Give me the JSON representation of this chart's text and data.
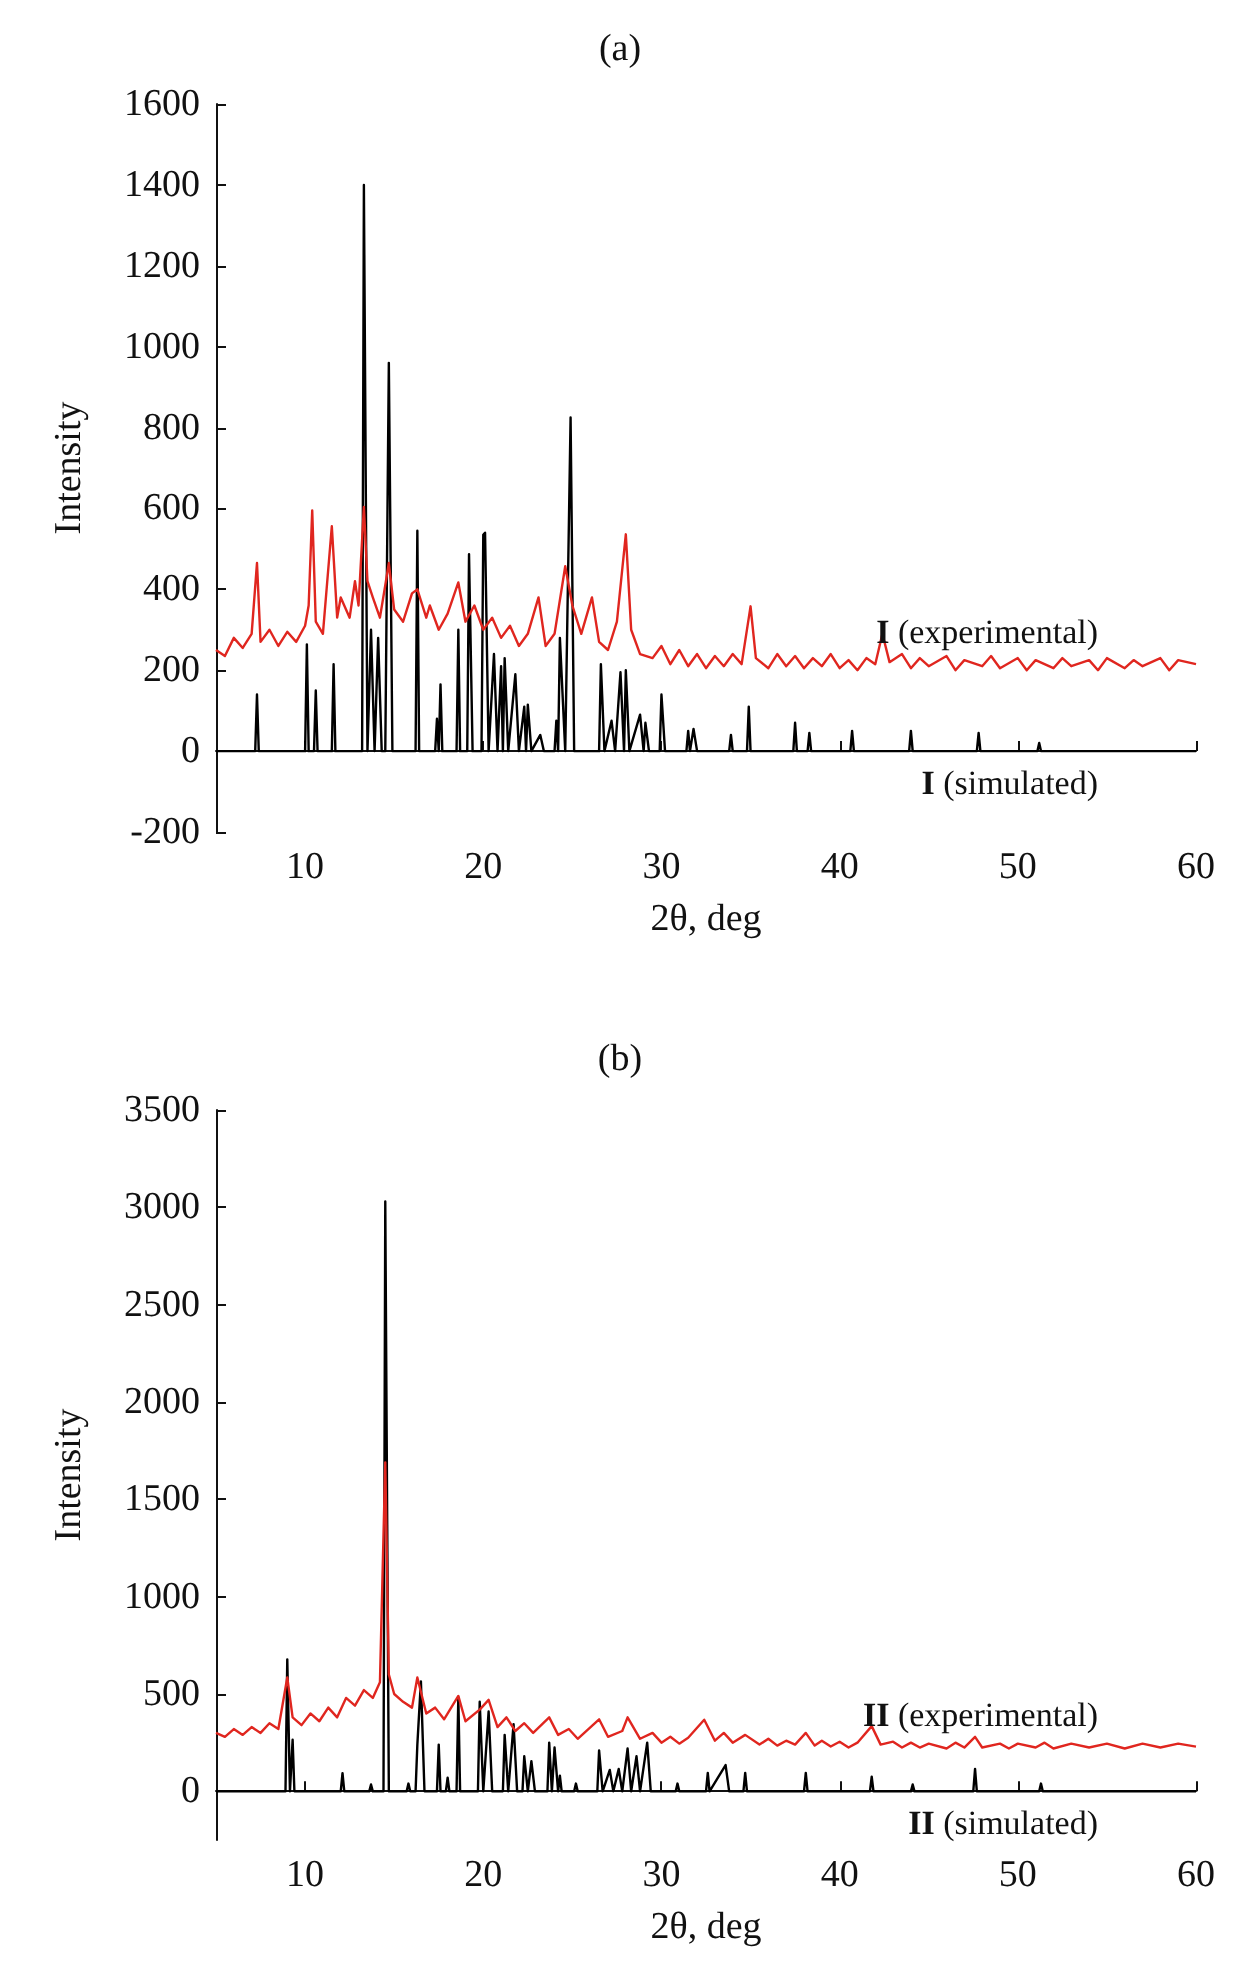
{
  "chart_data": [
    {
      "type": "line",
      "title": "(a)",
      "xlabel": "2θ, deg",
      "ylabel": "Intensity",
      "xlim": [
        5,
        60
      ],
      "xticks": [
        10,
        20,
        30,
        40,
        50,
        60
      ],
      "ylim": [
        -200,
        1600
      ],
      "yticks": [
        -200,
        0,
        200,
        400,
        600,
        800,
        1000,
        1200,
        1400,
        1600
      ],
      "series": [
        {
          "name": "I (simulated)",
          "color": "#000000",
          "x": [
            5,
            7.2,
            7.3,
            7.4,
            10.0,
            10.1,
            10.2,
            10.5,
            10.6,
            10.7,
            11.5,
            11.6,
            11.7,
            13.2,
            13.3,
            13.5,
            13.7,
            13.9,
            14.1,
            14.3,
            14.5,
            14.7,
            14.9,
            16.2,
            16.3,
            16.4,
            17.3,
            17.4,
            17.5,
            17.6,
            17.7,
            18.5,
            18.6,
            18.7,
            19.1,
            19.2,
            19.4,
            19.9,
            20.0,
            20.1,
            20.3,
            20.6,
            20.8,
            21.0,
            21.1,
            21.2,
            21.4,
            21.8,
            22.0,
            22.3,
            22.4,
            22.5,
            22.7,
            23.2,
            23.4,
            24.0,
            24.1,
            24.2,
            24.3,
            24.6,
            24.9,
            25.1,
            26.5,
            26.6,
            26.8,
            27.2,
            27.4,
            27.7,
            27.9,
            28.0,
            28.2,
            28.8,
            29.0,
            29.1,
            29.3,
            29.9,
            30.0,
            30.2,
            31.4,
            31.5,
            31.6,
            31.8,
            32.0,
            33.8,
            33.9,
            34.0,
            34.8,
            34.9,
            35.0,
            37.4,
            37.5,
            37.6,
            38.2,
            38.3,
            38.4,
            40.6,
            40.7,
            40.8,
            43.9,
            44.0,
            44.1,
            47.7,
            47.8,
            47.9,
            51.1,
            51.2,
            51.3,
            60
          ],
          "values": [
            0,
            0,
            140,
            0,
            0,
            264,
            0,
            0,
            150,
            0,
            0,
            215,
            0,
            0,
            1400,
            0,
            300,
            0,
            280,
            0,
            0,
            960,
            0,
            0,
            545,
            0,
            0,
            80,
            0,
            165,
            0,
            0,
            300,
            0,
            0,
            487,
            0,
            0,
            535,
            540,
            0,
            240,
            0,
            210,
            0,
            230,
            0,
            190,
            0,
            110,
            0,
            115,
            0,
            40,
            0,
            0,
            75,
            0,
            280,
            0,
            825,
            0,
            0,
            215,
            0,
            75,
            0,
            195,
            0,
            200,
            0,
            90,
            0,
            70,
            0,
            0,
            140,
            0,
            0,
            50,
            0,
            55,
            0,
            0,
            40,
            0,
            0,
            110,
            0,
            0,
            70,
            0,
            0,
            45,
            0,
            0,
            50,
            0,
            0,
            50,
            0,
            0,
            45,
            0,
            0,
            20,
            0,
            0
          ]
        },
        {
          "name": "I (experimental)",
          "color": "#e0261f",
          "x": [
            5,
            5.5,
            6,
            6.5,
            7,
            7.3,
            7.5,
            8,
            8.5,
            9,
            9.5,
            10,
            10.2,
            10.4,
            10.6,
            11,
            11.5,
            11.8,
            12,
            12.5,
            12.8,
            13,
            13.3,
            13.5,
            13.8,
            14.2,
            14.5,
            14.7,
            15,
            15.5,
            16,
            16.3,
            16.8,
            17,
            17.5,
            18,
            18.6,
            19,
            19.5,
            20,
            20.5,
            21,
            21.5,
            22,
            22.5,
            23.1,
            23.5,
            24,
            24.6,
            25,
            25.5,
            26.1,
            26.5,
            27,
            27.5,
            28,
            28.3,
            28.8,
            29.5,
            30,
            30.5,
            31,
            31.5,
            32,
            32.5,
            33,
            33.5,
            34,
            34.5,
            35,
            35.3,
            36,
            36.5,
            37,
            37.5,
            38,
            38.5,
            39,
            39.5,
            40,
            40.5,
            41,
            41.5,
            42,
            42.4,
            42.8,
            43.5,
            44,
            44.5,
            45,
            46,
            46.5,
            47,
            48,
            48.5,
            49,
            50,
            50.5,
            51,
            52,
            52.5,
            53,
            54,
            54.5,
            55,
            56,
            56.5,
            57,
            58,
            58.5,
            59,
            60
          ],
          "values": [
            250,
            235,
            280,
            255,
            290,
            465,
            270,
            300,
            260,
            295,
            270,
            310,
            360,
            595,
            320,
            290,
            556,
            330,
            380,
            330,
            420,
            360,
            604,
            420,
            380,
            330,
            410,
            465,
            350,
            320,
            390,
            400,
            330,
            360,
            300,
            340,
            417,
            320,
            360,
            300,
            330,
            280,
            310,
            260,
            290,
            380,
            260,
            290,
            457,
            360,
            290,
            380,
            270,
            250,
            320,
            536,
            300,
            240,
            230,
            260,
            215,
            250,
            210,
            240,
            205,
            235,
            210,
            240,
            215,
            358,
            230,
            205,
            240,
            210,
            235,
            205,
            230,
            210,
            240,
            205,
            225,
            200,
            230,
            215,
            290,
            220,
            240,
            205,
            230,
            210,
            235,
            200,
            225,
            210,
            235,
            205,
            230,
            200,
            225,
            205,
            230,
            210,
            225,
            200,
            230,
            205,
            225,
            210,
            230,
            200,
            225,
            215
          ]
        }
      ]
    },
    {
      "type": "line",
      "title": "(b)",
      "xlabel": "2θ, deg",
      "ylabel": "Intensity",
      "xlim": [
        5,
        60
      ],
      "xticks": [
        10,
        20,
        30,
        40,
        50,
        60
      ],
      "ylim": [
        -250,
        3500
      ],
      "yticks": [
        0,
        500,
        1000,
        1500,
        2000,
        2500,
        3000,
        3500
      ],
      "series": [
        {
          "name": "II (simulated)",
          "color": "#000000",
          "x": [
            5,
            8.9,
            9.0,
            9.15,
            9.3,
            9.4,
            12.0,
            12.1,
            12.2,
            13.6,
            13.7,
            13.8,
            14.4,
            14.5,
            14.7,
            15.7,
            15.8,
            15.9,
            16.2,
            16.3,
            16.5,
            16.7,
            17.4,
            17.5,
            17.6,
            17.9,
            18.0,
            18.1,
            18.5,
            18.6,
            18.7,
            19.7,
            19.8,
            20.0,
            20.3,
            20.5,
            21.1,
            21.2,
            21.4,
            21.7,
            21.9,
            22.2,
            22.3,
            22.5,
            22.7,
            22.9,
            23.6,
            23.7,
            23.85,
            24.0,
            24.2,
            24.3,
            24.4,
            25.1,
            25.2,
            25.3,
            26.4,
            26.5,
            26.7,
            27.1,
            27.3,
            27.6,
            27.8,
            28.1,
            28.3,
            28.6,
            28.8,
            29.2,
            29.4,
            30.8,
            30.9,
            31.0,
            32.5,
            32.6,
            32.7,
            33.6,
            33.8,
            34.6,
            34.7,
            34.8,
            38.0,
            38.1,
            38.2,
            41.7,
            41.8,
            41.9,
            44.0,
            44.1,
            44.2,
            47.5,
            47.6,
            47.7,
            51.2,
            51.3,
            51.4,
            60
          ],
          "values": [
            0,
            0,
            678,
            0,
            265,
            0,
            0,
            93,
            0,
            0,
            35,
            0,
            0,
            3030,
            0,
            0,
            40,
            0,
            0,
            240,
            565,
            0,
            0,
            240,
            0,
            0,
            70,
            0,
            0,
            482,
            0,
            0,
            460,
            0,
            410,
            0,
            0,
            290,
            0,
            345,
            0,
            0,
            180,
            0,
            155,
            0,
            0,
            250,
            0,
            225,
            0,
            80,
            0,
            0,
            40,
            0,
            0,
            210,
            0,
            110,
            0,
            115,
            0,
            220,
            0,
            180,
            0,
            250,
            0,
            0,
            40,
            0,
            0,
            95,
            0,
            135,
            0,
            0,
            95,
            0,
            0,
            95,
            0,
            0,
            75,
            0,
            0,
            35,
            0,
            0,
            115,
            0,
            0,
            40,
            0,
            0
          ]
        },
        {
          "name": "II (experimental)",
          "color": "#e0261f",
          "x": [
            5,
            5.5,
            6,
            6.5,
            7,
            7.5,
            8,
            8.5,
            9,
            9.3,
            9.8,
            10.3,
            10.8,
            11.3,
            11.8,
            12.3,
            12.8,
            13.3,
            13.8,
            14.2,
            14.5,
            14.7,
            15,
            15.5,
            16,
            16.3,
            16.8,
            17.3,
            17.8,
            18.6,
            19,
            19.8,
            20.3,
            20.8,
            21.3,
            21.8,
            22.3,
            22.8,
            23.7,
            24.2,
            24.8,
            25.3,
            26.5,
            27,
            27.8,
            28.1,
            28.8,
            29.5,
            30,
            30.5,
            31,
            31.5,
            32.4,
            33,
            33.5,
            34,
            34.7,
            35.5,
            36,
            36.5,
            37,
            37.5,
            38.1,
            38.6,
            39,
            39.5,
            40,
            40.5,
            41,
            41.8,
            42.3,
            43,
            43.5,
            44,
            44.5,
            45,
            46,
            46.5,
            47,
            47.6,
            48,
            49,
            49.5,
            50,
            51,
            51.5,
            52,
            53,
            54,
            55,
            56,
            57,
            58,
            59,
            60
          ],
          "values": [
            300,
            280,
            320,
            290,
            330,
            300,
            350,
            320,
            585,
            380,
            340,
            400,
            360,
            430,
            380,
            480,
            440,
            520,
            480,
            560,
            1690,
            600,
            500,
            460,
            430,
            585,
            400,
            430,
            370,
            490,
            360,
            420,
            470,
            330,
            380,
            310,
            350,
            300,
            380,
            290,
            320,
            270,
            370,
            280,
            310,
            380,
            270,
            300,
            250,
            280,
            245,
            275,
            368,
            260,
            300,
            250,
            290,
            240,
            270,
            235,
            260,
            240,
            300,
            235,
            260,
            230,
            255,
            225,
            250,
            335,
            240,
            255,
            225,
            250,
            225,
            245,
            220,
            250,
            225,
            280,
            225,
            245,
            220,
            245,
            225,
            250,
            220,
            245,
            225,
            245,
            220,
            245,
            225,
            245,
            230
          ]
        }
      ]
    }
  ]
}
